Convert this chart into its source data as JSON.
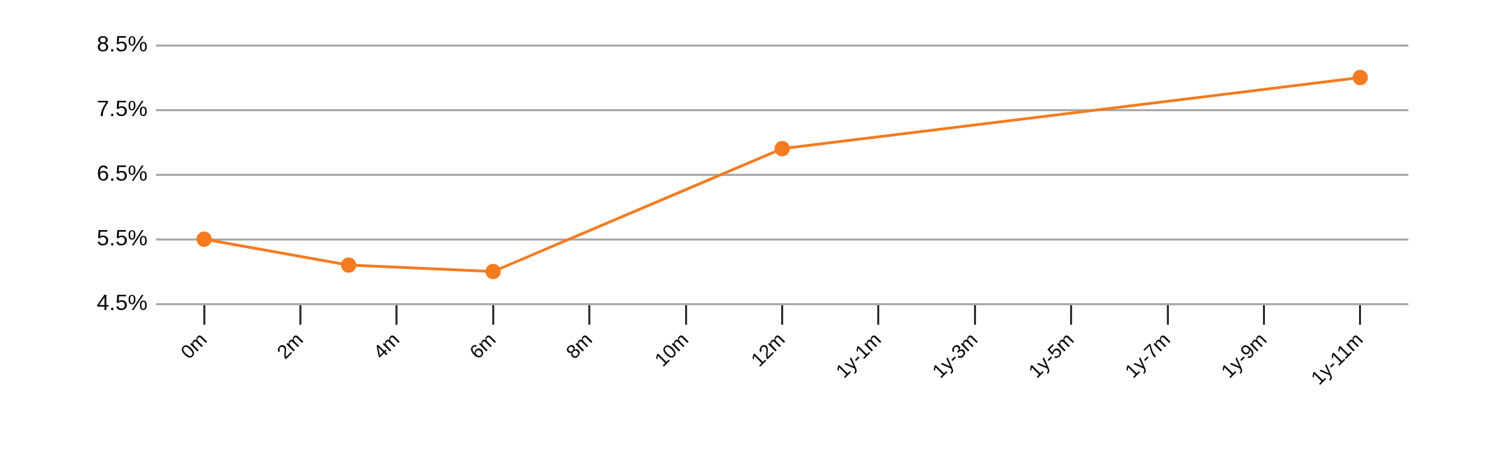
{
  "chart_data": {
    "type": "line",
    "x": [
      0,
      3,
      6,
      12,
      24
    ],
    "series": [
      {
        "color": "#f47b20",
        "values": [
          5.5,
          5.1,
          5.0,
          6.9,
          8.0
        ]
      }
    ],
    "xlim": [
      -1,
      25
    ],
    "xticks": [
      {
        "value": 0,
        "label": "0m"
      },
      {
        "value": 2,
        "label": "2m"
      },
      {
        "value": 4,
        "label": "4m"
      },
      {
        "value": 6,
        "label": "6m"
      },
      {
        "value": 8,
        "label": "8m"
      },
      {
        "value": 10,
        "label": "10m"
      },
      {
        "value": 12,
        "label": "12m"
      },
      {
        "value": 14,
        "label": "1y-1m"
      },
      {
        "value": 16,
        "label": "1y-3m"
      },
      {
        "value": 18,
        "label": "1y-5m"
      },
      {
        "value": 20,
        "label": "1y-7m"
      },
      {
        "value": 22,
        "label": "1y-9m"
      },
      {
        "value": 24,
        "label": "1y-11m"
      }
    ],
    "ylim": [
      4.5,
      8.5
    ],
    "yticks": [
      {
        "value": 4.5,
        "label": "4.5%"
      },
      {
        "value": 5.5,
        "label": "5.5%"
      },
      {
        "value": 6.5,
        "label": "6.5%"
      },
      {
        "value": 7.5,
        "label": "7.5%"
      },
      {
        "value": 8.5,
        "label": "8.5%"
      }
    ],
    "grid": "y",
    "legend": false,
    "marker": "circle",
    "line_style": "solid"
  }
}
